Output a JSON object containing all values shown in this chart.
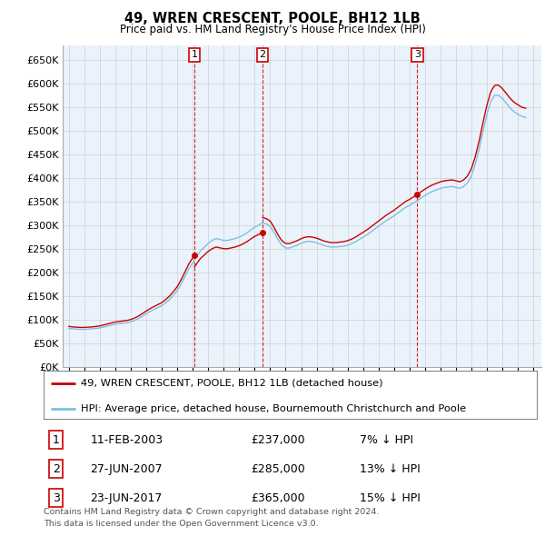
{
  "title": "49, WREN CRESCENT, POOLE, BH12 1LB",
  "subtitle": "Price paid vs. HM Land Registry's House Price Index (HPI)",
  "legend_line1": "49, WREN CRESCENT, POOLE, BH12 1LB (detached house)",
  "legend_line2": "HPI: Average price, detached house, Bournemouth Christchurch and Poole",
  "transactions": [
    {
      "label": "1",
      "date": "11-FEB-2003",
      "price": 237000,
      "pct": "7% ↓ HPI",
      "x_year": 2003.1
    },
    {
      "label": "2",
      "date": "27-JUN-2007",
      "price": 285000,
      "pct": "13% ↓ HPI",
      "x_year": 2007.5
    },
    {
      "label": "3",
      "date": "23-JUN-2017",
      "price": 365000,
      "pct": "15% ↓ HPI",
      "x_year": 2017.5
    }
  ],
  "footer_line1": "Contains HM Land Registry data © Crown copyright and database right 2024.",
  "footer_line2": "This data is licensed under the Open Government Licence v3.0.",
  "hpi_color": "#7fbfdf",
  "price_color": "#cc0000",
  "grid_color": "#d0d0d0",
  "background_color": "#ffffff",
  "plot_bg_color": "#eaf3fb",
  "ylim_bottom": 0,
  "ylim_top": 680000,
  "xlim_left": 1994.6,
  "xlim_right": 2025.5
}
